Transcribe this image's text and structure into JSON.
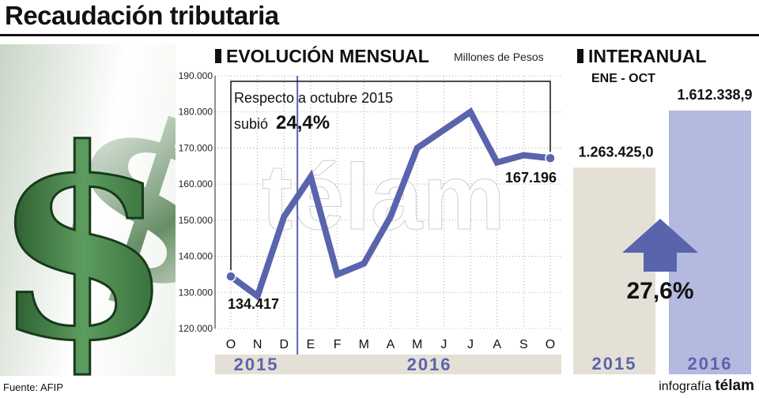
{
  "header": {
    "title": "Recaudación tributaria",
    "monthly_heading": "EVOLUCIÓN MENSUAL",
    "units": "Millones de Pesos",
    "yearly_heading": "INTERANUAL",
    "yearly_period": "ENE - OCT"
  },
  "annotation": {
    "line1": "Respecto a octubre 2015",
    "line2_prefix": "subió",
    "line2_value": "24,4%"
  },
  "watermark": "télam",
  "footer": {
    "source": "Fuente: AFIP",
    "credit_prefix": "infografía",
    "credit_brand": "télam"
  },
  "colors": {
    "series": "#5a64ad",
    "bar_2015": "#e4e0d5",
    "bar_2016": "#b3b9df",
    "year_strip": "#e4e0d5",
    "year_text": "#5a64ad",
    "arrow": "#5a64ad",
    "dollar": "#3f7d45"
  },
  "chart_data": [
    {
      "type": "line",
      "title": "EVOLUCIÓN MENSUAL",
      "ylabel": "Millones de Pesos",
      "categories": [
        "O",
        "N",
        "D",
        "E",
        "F",
        "M",
        "A",
        "M",
        "J",
        "J",
        "A",
        "S",
        "O"
      ],
      "year_groups": [
        {
          "label": "2015",
          "categories": [
            "O",
            "N",
            "D"
          ]
        },
        {
          "label": "2016",
          "categories": [
            "E",
            "F",
            "M",
            "A",
            "M",
            "J",
            "J",
            "A",
            "S",
            "O"
          ]
        }
      ],
      "series": [
        {
          "values": [
            134417,
            129000,
            151000,
            162000,
            135000,
            138000,
            151000,
            170000,
            175000,
            180000,
            166000,
            168000,
            167196
          ]
        }
      ],
      "ylim": [
        120000,
        190000
      ],
      "yticks": [
        "120.000",
        "130.000",
        "140.000",
        "150.000",
        "160.000",
        "170.000",
        "180.000",
        "190.000"
      ],
      "data_labels": {
        "first": "134.417",
        "last": "167.196"
      },
      "grid": true
    },
    {
      "type": "bar",
      "title": "INTERANUAL",
      "subtitle": "ENE - OCT",
      "categories": [
        "2015",
        "2016"
      ],
      "values": [
        1263425.0,
        1612338.9
      ],
      "value_labels": [
        "1.263.425,0",
        "1.612.338,9"
      ],
      "change_label": "27,6%"
    }
  ]
}
